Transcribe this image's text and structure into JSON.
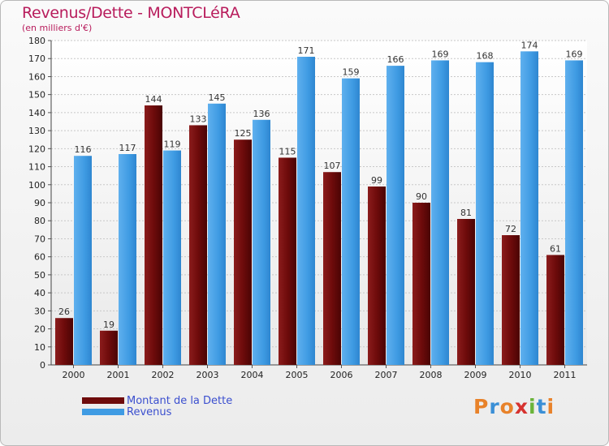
{
  "title": "Revenus/Dette - MONTCLéRA",
  "subtitle": "(en milliers d'€)",
  "brand": {
    "text": "Proxiti"
  },
  "colors": {
    "debt": "#6e0b0b",
    "revenue": "#3f9be3",
    "title": "#b81c5c",
    "legend_text": "#3b4fcf"
  },
  "legend": [
    {
      "label": "Montant de la Dette",
      "color": "#6e0b0b"
    },
    {
      "label": "Revenus",
      "color": "#3f9be3"
    }
  ],
  "chart_data": {
    "type": "bar",
    "categories": [
      "2000",
      "2001",
      "2002",
      "2003",
      "2004",
      "2005",
      "2006",
      "2007",
      "2008",
      "2009",
      "2010",
      "2011"
    ],
    "series": [
      {
        "name": "Montant de la Dette",
        "values": [
          26,
          19,
          144,
          133,
          125,
          115,
          107,
          99,
          90,
          81,
          72,
          61
        ]
      },
      {
        "name": "Revenus",
        "values": [
          116,
          117,
          119,
          145,
          136,
          171,
          159,
          166,
          169,
          168,
          174,
          169
        ]
      }
    ],
    "ylim": [
      0,
      180
    ],
    "ytick_step": 10,
    "grid": true,
    "legend_position": "bottom-left"
  }
}
